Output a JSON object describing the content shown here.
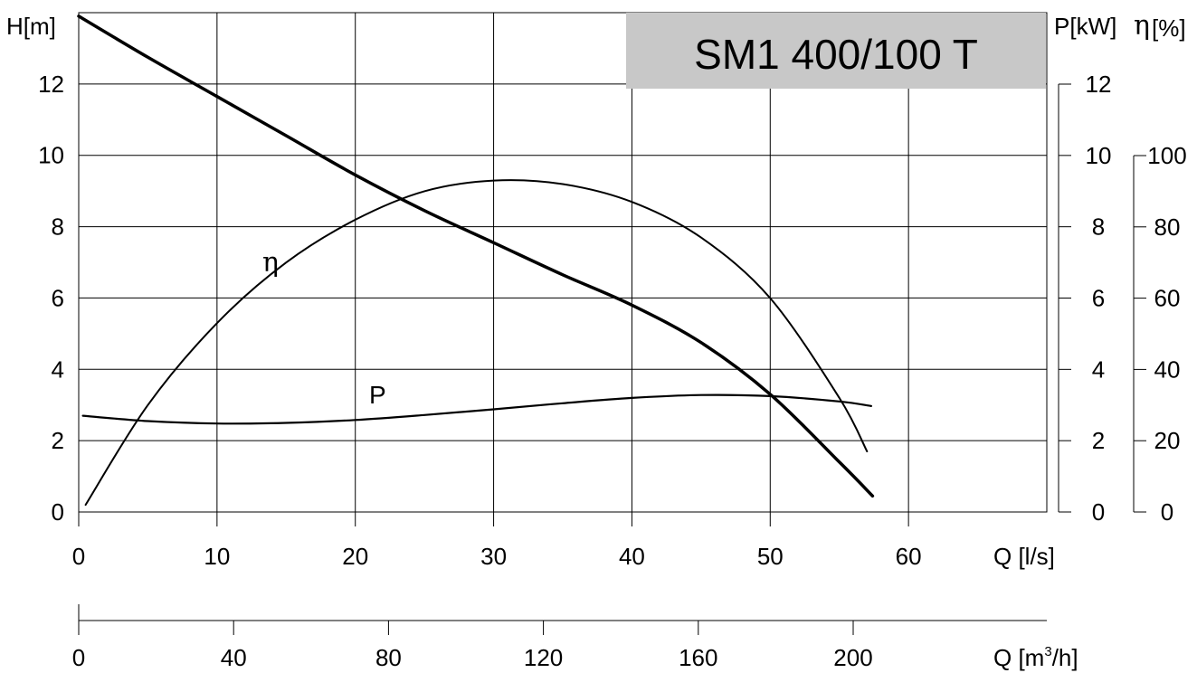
{
  "chart_data": {
    "type": "line",
    "title": "SM1 400/100 T",
    "xlabel": "Q [l/s]",
    "x_secondary_label": "Q [m3/h]",
    "ylabel_left": "H[m]",
    "ylabel_right_power": "P[kW]",
    "ylabel_right_eff_symbol": "η",
    "ylabel_right_eff_unit": "[%]",
    "xlim": [
      0,
      70
    ],
    "ylim": [
      0,
      14
    ],
    "power_lim": [
      0,
      12
    ],
    "eff_lim": [
      0,
      100
    ],
    "x_secondary_lim": [
      0,
      250
    ],
    "grid": true,
    "x_ticks": [
      "0",
      "10",
      "20",
      "30",
      "40",
      "50",
      "60"
    ],
    "y_ticks": [
      "0",
      "2",
      "4",
      "6",
      "8",
      "10",
      "12"
    ],
    "power_ticks": [
      "0",
      "2",
      "4",
      "6",
      "8",
      "10",
      "12"
    ],
    "eff_ticks": [
      "0",
      "20",
      "40",
      "60",
      "80",
      "100"
    ],
    "x_secondary_ticks": [
      "0",
      "40",
      "80",
      "120",
      "160",
      "200"
    ],
    "series": [
      {
        "name": "H",
        "axis": "head",
        "x": [
          0,
          5,
          10,
          15,
          20,
          25,
          30,
          35,
          40,
          45,
          50,
          55,
          57.4
        ],
        "values": [
          13.9,
          12.75,
          11.65,
          10.55,
          9.45,
          8.45,
          7.55,
          6.65,
          5.8,
          4.75,
          3.3,
          1.4,
          0.45
        ]
      },
      {
        "name": "η",
        "axis": "efficiency",
        "x": [
          0.5,
          5,
          10,
          15,
          20,
          25,
          30,
          35,
          40,
          45,
          50,
          55,
          57
        ],
        "values": [
          2,
          30,
          53,
          70,
          82,
          90,
          93,
          92,
          87,
          77,
          60,
          32,
          17
        ]
      },
      {
        "name": "P",
        "axis": "power",
        "x": [
          0.3,
          5,
          10,
          15,
          20,
          25,
          30,
          35,
          40,
          45,
          50,
          55,
          57.3
        ],
        "values": [
          2.7,
          2.55,
          2.48,
          2.5,
          2.58,
          2.72,
          2.88,
          3.05,
          3.2,
          3.28,
          3.25,
          3.1,
          2.97
        ]
      }
    ]
  }
}
